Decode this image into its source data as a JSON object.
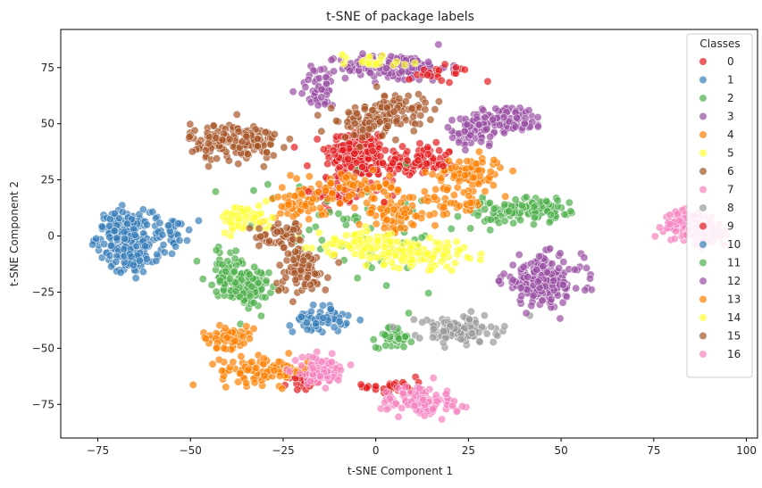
{
  "chart_data": {
    "type": "scatter",
    "title": "t-SNE of package labels",
    "xlabel": "t-SNE Component 1",
    "ylabel": "t-SNE Component 2",
    "xlim": [
      -85,
      103
    ],
    "ylim": [
      -90,
      92
    ],
    "xticks": [
      -75,
      -50,
      -25,
      0,
      25,
      50,
      75,
      100
    ],
    "yticks": [
      -75,
      -50,
      -25,
      0,
      25,
      50,
      75
    ],
    "xtick_labels": [
      "−75",
      "−50",
      "−25",
      "0",
      "25",
      "50",
      "75",
      "100"
    ],
    "ytick_labels": [
      "−75",
      "−50",
      "−25",
      "0",
      "25",
      "50",
      "75"
    ],
    "grid": false,
    "legend": {
      "title": "Classes",
      "placement": "top-right"
    },
    "series": [
      {
        "name": "0",
        "color": "#e41a1c",
        "clusters": [
          [
            -5,
            37,
            7,
            9,
            150
          ],
          [
            12,
            33,
            8,
            6,
            80
          ],
          [
            -20,
            -65,
            3,
            3,
            25
          ],
          [
            5,
            -67,
            7,
            3,
            30
          ],
          [
            -10,
            20,
            6,
            6,
            40
          ]
        ]
      },
      {
        "name": "1",
        "color": "#377eb8",
        "clusters": [
          [
            -68,
            0,
            6,
            9,
            180
          ],
          [
            -55,
            2,
            4,
            6,
            40
          ],
          [
            -15,
            -37,
            6,
            5,
            60
          ]
        ]
      },
      {
        "name": "2",
        "color": "#4daf4a",
        "clusters": [
          [
            -35,
            -23,
            5,
            7,
            120
          ],
          [
            5,
            -45,
            4,
            4,
            40
          ],
          [
            35,
            10,
            10,
            5,
            60
          ],
          [
            -5,
            5,
            25,
            25,
            60
          ]
        ]
      },
      {
        "name": "3",
        "color": "#984ea3",
        "clusters": [
          [
            5,
            75,
            12,
            5,
            150
          ],
          [
            -15,
            65,
            5,
            7,
            40
          ],
          [
            35,
            52,
            9,
            5,
            100
          ]
        ]
      },
      {
        "name": "4",
        "color": "#ff7f00",
        "clusters": [
          [
            -40,
            -45,
            6,
            4,
            60
          ],
          [
            -30,
            -60,
            10,
            5,
            100
          ],
          [
            5,
            10,
            8,
            7,
            80
          ],
          [
            25,
            28,
            8,
            6,
            80
          ],
          [
            -20,
            15,
            6,
            8,
            60
          ]
        ]
      },
      {
        "name": "5",
        "color": "#ffff33",
        "clusters": [
          [
            -35,
            8,
            6,
            5,
            60
          ],
          [
            10,
            -8,
            12,
            5,
            120
          ],
          [
            0,
            78,
            10,
            3,
            20
          ]
        ]
      },
      {
        "name": "6",
        "color": "#a65628",
        "clusters": [
          [
            -38,
            42,
            10,
            7,
            160
          ],
          [
            5,
            55,
            7,
            7,
            100
          ],
          [
            -20,
            -15,
            6,
            9,
            80
          ]
        ]
      },
      {
        "name": "7",
        "color": "#f781bf",
        "clusters": [
          [
            85,
            5,
            6,
            5,
            150
          ],
          [
            10,
            -72,
            7,
            5,
            60
          ]
        ]
      },
      {
        "name": "8",
        "color": "#999999",
        "clusters": [
          [
            22,
            -42,
            9,
            5,
            120
          ]
        ]
      },
      {
        "name": "9",
        "color": "#e41a1c",
        "clusters": [
          [
            18,
            72,
            8,
            4,
            20
          ],
          [
            0,
            30,
            10,
            10,
            40
          ]
        ]
      },
      {
        "name": "10",
        "color": "#377eb8",
        "clusters": [
          [
            -65,
            -10,
            6,
            6,
            60
          ]
        ]
      },
      {
        "name": "11",
        "color": "#4daf4a",
        "clusters": [
          [
            45,
            12,
            6,
            4,
            50
          ],
          [
            -40,
            -15,
            5,
            8,
            40
          ]
        ]
      },
      {
        "name": "12",
        "color": "#984ea3",
        "clusters": [
          [
            45,
            -20,
            9,
            9,
            200
          ],
          [
            25,
            45,
            6,
            4,
            40
          ]
        ]
      },
      {
        "name": "13",
        "color": "#ff7f00",
        "clusters": [
          [
            -5,
            22,
            10,
            5,
            60
          ],
          [
            20,
            15,
            8,
            5,
            40
          ]
        ]
      },
      {
        "name": "14",
        "color": "#ffff33",
        "clusters": [
          [
            -5,
            -3,
            10,
            4,
            60
          ]
        ]
      },
      {
        "name": "15",
        "color": "#a65628",
        "clusters": [
          [
            -25,
            0,
            6,
            5,
            50
          ],
          [
            -5,
            50,
            6,
            5,
            40
          ]
        ]
      },
      {
        "name": "16",
        "color": "#f781bf",
        "clusters": [
          [
            -15,
            -60,
            6,
            5,
            80
          ],
          [
            15,
            -75,
            6,
            4,
            60
          ],
          [
            90,
            0,
            4,
            4,
            30
          ]
        ]
      }
    ],
    "marker_alpha": 0.7
  }
}
